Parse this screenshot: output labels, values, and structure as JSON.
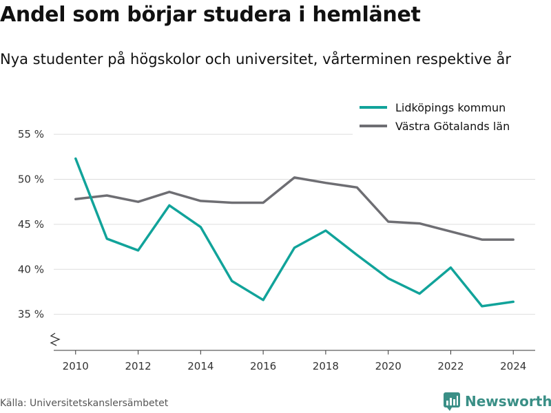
{
  "header": {
    "title": "Andel som börjar studera i hemlänet",
    "subtitle": "Nya studenter på högskolor och universitet, vårterminen respektive år"
  },
  "footer": {
    "source": "Källa: Universitetskanslersämbetet",
    "brand": "Newsworthy"
  },
  "colors": {
    "lidkoping": "#11a39a",
    "vastra_gotaland": "#6e6e73",
    "grid": "#dddddd",
    "brand": "#3a8f86"
  },
  "chart_data": {
    "type": "line",
    "title": "Andel som börjar studera i hemlänet",
    "subtitle": "Nya studenter på högskolor och universitet, vårterminen respektive år",
    "x": [
      2010,
      2011,
      2012,
      2013,
      2014,
      2015,
      2016,
      2017,
      2018,
      2019,
      2020,
      2021,
      2022,
      2023,
      2024
    ],
    "xticks": [
      2010,
      2012,
      2014,
      2016,
      2018,
      2020,
      2022,
      2024
    ],
    "xtick_labels": [
      "2010",
      "2012",
      "2014",
      "2016",
      "2018",
      "2020",
      "2022",
      "2024"
    ],
    "yticks": [
      35,
      40,
      45,
      50,
      55
    ],
    "ytick_labels": [
      "35 %",
      "40 %",
      "45 %",
      "50 %",
      "55 %"
    ],
    "ylim": [
      31,
      56
    ],
    "xlim": [
      2009.3,
      2024.7
    ],
    "y_axis_break": true,
    "grid": true,
    "legend_position": "top-right",
    "series": [
      {
        "name": "Lidköpings kommun",
        "color": "#11a39a",
        "values": [
          52.3,
          43.4,
          42.1,
          47.1,
          44.7,
          38.7,
          36.6,
          42.4,
          44.3,
          41.6,
          39.0,
          37.3,
          40.2,
          35.9,
          36.4
        ]
      },
      {
        "name": "Västra Götalands län",
        "color": "#6e6e73",
        "values": [
          47.8,
          48.2,
          47.5,
          48.6,
          47.6,
          47.4,
          47.4,
          50.2,
          49.6,
          49.1,
          45.3,
          45.1,
          44.2,
          43.3,
          43.3
        ]
      }
    ]
  }
}
